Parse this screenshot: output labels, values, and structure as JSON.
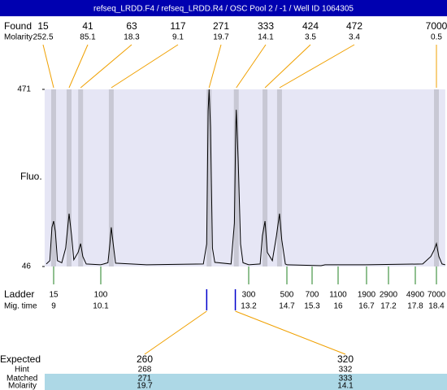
{
  "chart_data": {
    "type": "electropherogram",
    "title": "refseq_LRDD.F4 / refseq_LRDD.R4 / OSC Pool 2 / -1 / Well ID 1064305",
    "y_label": "Fluo.",
    "ylim": [
      46,
      471
    ],
    "yticks": [
      46,
      471
    ],
    "xlim": [
      8.79,
      18.65
    ],
    "background": "#e6e6f5",
    "trace": {
      "color": "#000000",
      "x": [
        8.83,
        8.91,
        8.96,
        9.0,
        9.04,
        9.09,
        9.19,
        9.28,
        9.36,
        9.42,
        9.47,
        9.57,
        9.63,
        9.68,
        9.76,
        10.1,
        10.25,
        10.29,
        10.32,
        10.36,
        10.41,
        11.06,
        12.25,
        12.32,
        12.35,
        12.37,
        12.4,
        12.44,
        12.49,
        12.83,
        12.9,
        12.93,
        12.94,
        12.98,
        13.03,
        13.08,
        13.2,
        13.65,
        13.74,
        13.84,
        13.93,
        14.13,
        14.29,
        14.41,
        14.5,
        14.64,
        14.7,
        15.54,
        15.65,
        16.68,
        18.01,
        18.24,
        18.33,
        18.4,
        18.47,
        18.56,
        18.65
      ],
      "y": [
        52,
        60,
        140,
        155,
        130,
        60,
        55,
        90,
        173,
        120,
        62,
        80,
        101,
        70,
        52,
        50,
        55,
        100,
        140,
        100,
        54,
        50,
        52,
        100,
        420,
        471,
        380,
        90,
        56,
        52,
        150,
        380,
        422,
        300,
        100,
        55,
        50,
        52,
        120,
        155,
        80,
        60,
        120,
        173,
        110,
        52,
        50,
        48,
        50,
        50,
        52,
        70,
        85,
        101,
        70,
        52,
        50
      ]
    },
    "found": {
      "label": "Found",
      "molarity_label": "Molarity",
      "sizes": [
        15,
        41,
        63,
        117,
        271,
        333,
        424,
        472,
        7000
      ],
      "molarity": [
        252.5,
        85.1,
        18.3,
        9.1,
        19.7,
        14.1,
        3.5,
        3.4,
        0.5
      ],
      "x": [
        9.0,
        9.36,
        9.63,
        10.32,
        12.37,
        12.94,
        13.84,
        14.41,
        18.4
      ],
      "band_color": "#c8c8d4",
      "line_color": "#f0a000"
    },
    "ladder": {
      "label": "Ladder",
      "time_label": "Mig. time",
      "sizes": [
        15,
        100,
        300,
        500,
        700,
        1100,
        1900,
        2900,
        4900,
        7000
      ],
      "x": [
        9,
        10.1,
        13.2,
        14.7,
        15.3,
        16,
        16.7,
        17.2,
        17.8,
        18.4
      ],
      "color": "#208020"
    },
    "expected": {
      "label": "Expected",
      "hint_label": "Hint",
      "matched_label": "Matched",
      "molarity_label": "Molarity",
      "sizes": [
        260,
        320
      ],
      "hint": [
        268,
        332
      ],
      "matched": [
        271,
        333
      ],
      "molarity": [
        19.7,
        14.1
      ],
      "x": [
        12.32,
        12.92
      ],
      "color": "#0000cc",
      "line_color": "#f0a000",
      "row_color": "#add8e6"
    }
  }
}
